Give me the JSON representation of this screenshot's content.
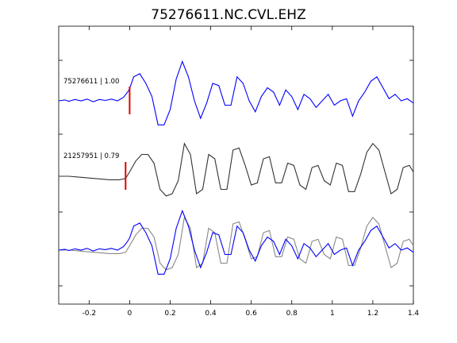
{
  "chart_data": {
    "type": "line",
    "title": "75276611.NC.CVL.EHZ",
    "xlabel": "",
    "ylabel": "",
    "xlim": [
      -0.35,
      1.4
    ],
    "xticks": [
      -0.2,
      0,
      0.2,
      0.4,
      0.6,
      0.8,
      1,
      1.2,
      1.4
    ],
    "xtick_labels": [
      "-0.2",
      "0",
      "0.2",
      "0.4",
      "0.6",
      "0.8",
      "1",
      "1.2",
      "1.4"
    ],
    "grid": false,
    "traces": [
      {
        "label": "75276611 | 1.00",
        "color": "#0000ff",
        "pick_time": 0.0,
        "x": [
          -0.35,
          -0.32,
          -0.3,
          -0.27,
          -0.24,
          -0.21,
          -0.18,
          -0.15,
          -0.12,
          -0.09,
          -0.06,
          -0.03,
          -0.01,
          0.0,
          0.02,
          0.05,
          0.08,
          0.11,
          0.14,
          0.17,
          0.2,
          0.23,
          0.26,
          0.29,
          0.32,
          0.35,
          0.38,
          0.41,
          0.44,
          0.47,
          0.5,
          0.53,
          0.56,
          0.59,
          0.62,
          0.65,
          0.68,
          0.71,
          0.74,
          0.77,
          0.8,
          0.83,
          0.86,
          0.89,
          0.92,
          0.95,
          0.98,
          1.01,
          1.04,
          1.07,
          1.1,
          1.13,
          1.16,
          1.19,
          1.22,
          1.25,
          1.28,
          1.31,
          1.34,
          1.37,
          1.4
        ],
        "y": [
          0,
          0.02,
          -0.01,
          0.03,
          0.0,
          0.04,
          -0.02,
          0.03,
          0.01,
          0.04,
          0.0,
          0.08,
          0.2,
          0.28,
          0.55,
          0.62,
          0.4,
          0.1,
          -0.55,
          -0.55,
          -0.2,
          0.5,
          0.9,
          0.55,
          0.0,
          -0.4,
          -0.05,
          0.4,
          0.35,
          -0.1,
          -0.1,
          0.55,
          0.4,
          0.0,
          -0.25,
          0.1,
          0.3,
          0.2,
          -0.1,
          0.25,
          0.1,
          -0.2,
          0.15,
          0.05,
          -0.15,
          0.0,
          0.15,
          -0.1,
          0.0,
          0.05,
          -0.35,
          0.0,
          0.2,
          0.45,
          0.55,
          0.3,
          0.05,
          0.15,
          0.0,
          0.05,
          -0.05
        ]
      },
      {
        "label": "21257951 | 0.79",
        "color": "#333333",
        "pick_time": -0.02,
        "x": [
          -0.35,
          -0.3,
          -0.25,
          -0.2,
          -0.15,
          -0.1,
          -0.05,
          -0.02,
          0.0,
          0.03,
          0.06,
          0.09,
          0.12,
          0.15,
          0.18,
          0.21,
          0.24,
          0.27,
          0.3,
          0.33,
          0.36,
          0.39,
          0.42,
          0.45,
          0.48,
          0.51,
          0.54,
          0.57,
          0.6,
          0.63,
          0.66,
          0.69,
          0.72,
          0.75,
          0.78,
          0.81,
          0.84,
          0.87,
          0.9,
          0.93,
          0.96,
          0.99,
          1.02,
          1.05,
          1.08,
          1.11,
          1.14,
          1.17,
          1.2,
          1.23,
          1.26,
          1.29,
          1.32,
          1.35,
          1.38,
          1.4
        ],
        "y": [
          0,
          0.0,
          -0.02,
          -0.04,
          -0.06,
          -0.08,
          -0.08,
          -0.05,
          0.1,
          0.35,
          0.5,
          0.5,
          0.3,
          -0.3,
          -0.45,
          -0.4,
          -0.1,
          0.75,
          0.5,
          -0.4,
          -0.3,
          0.5,
          0.4,
          -0.3,
          -0.3,
          0.6,
          0.65,
          0.25,
          -0.2,
          -0.15,
          0.4,
          0.45,
          -0.15,
          -0.15,
          0.3,
          0.25,
          -0.2,
          -0.3,
          0.2,
          0.25,
          -0.1,
          -0.2,
          0.3,
          0.25,
          -0.35,
          -0.35,
          0.05,
          0.55,
          0.75,
          0.6,
          0.1,
          -0.4,
          -0.3,
          0.2,
          0.25,
          0.1
        ]
      }
    ]
  }
}
